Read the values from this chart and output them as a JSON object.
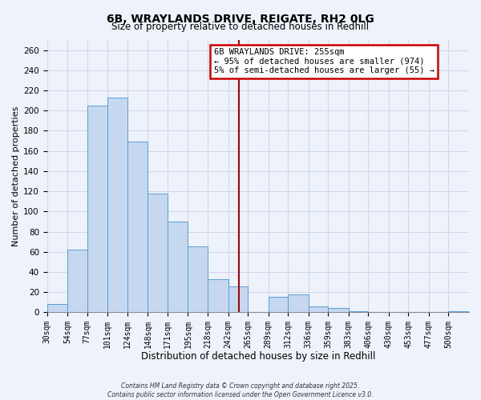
{
  "title": "6B, WRAYLANDS DRIVE, REIGATE, RH2 0LG",
  "subtitle": "Size of property relative to detached houses in Redhill",
  "xlabel": "Distribution of detached houses by size in Redhill",
  "ylabel": "Number of detached properties",
  "bar_labels": [
    "30sqm",
    "54sqm",
    "77sqm",
    "101sqm",
    "124sqm",
    "148sqm",
    "171sqm",
    "195sqm",
    "218sqm",
    "242sqm",
    "265sqm",
    "289sqm",
    "312sqm",
    "336sqm",
    "359sqm",
    "383sqm",
    "406sqm",
    "430sqm",
    "453sqm",
    "477sqm",
    "500sqm"
  ],
  "bar_values": [
    8,
    62,
    205,
    213,
    169,
    118,
    90,
    65,
    33,
    26,
    0,
    15,
    18,
    6,
    4,
    1,
    0,
    0,
    0,
    0,
    1
  ],
  "bar_color": "#c5d8f0",
  "bar_edge_color": "#5a9fd4",
  "background_color": "#eef2fa",
  "grid_color": "#d0d8e8",
  "vline_x": 255,
  "vline_color": "#aa0000",
  "annotation_title": "6B WRAYLANDS DRIVE: 255sqm",
  "annotation_line1": "← 95% of detached houses are smaller (974)",
  "annotation_line2": "5% of semi-detached houses are larger (55) →",
  "annotation_box_color": "#ffffff",
  "annotation_box_edge": "#cc0000",
  "ylim": [
    0,
    270
  ],
  "yticks": [
    0,
    20,
    40,
    60,
    80,
    100,
    120,
    140,
    160,
    180,
    200,
    220,
    240,
    260
  ],
  "footer1": "Contains HM Land Registry data © Crown copyright and database right 2025.",
  "footer2": "Contains public sector information licensed under the Open Government Licence v3.0.",
  "bin_edges": [
    30,
    54,
    77,
    101,
    124,
    148,
    171,
    195,
    218,
    242,
    265,
    289,
    312,
    336,
    359,
    383,
    406,
    430,
    453,
    477,
    500,
    524
  ]
}
